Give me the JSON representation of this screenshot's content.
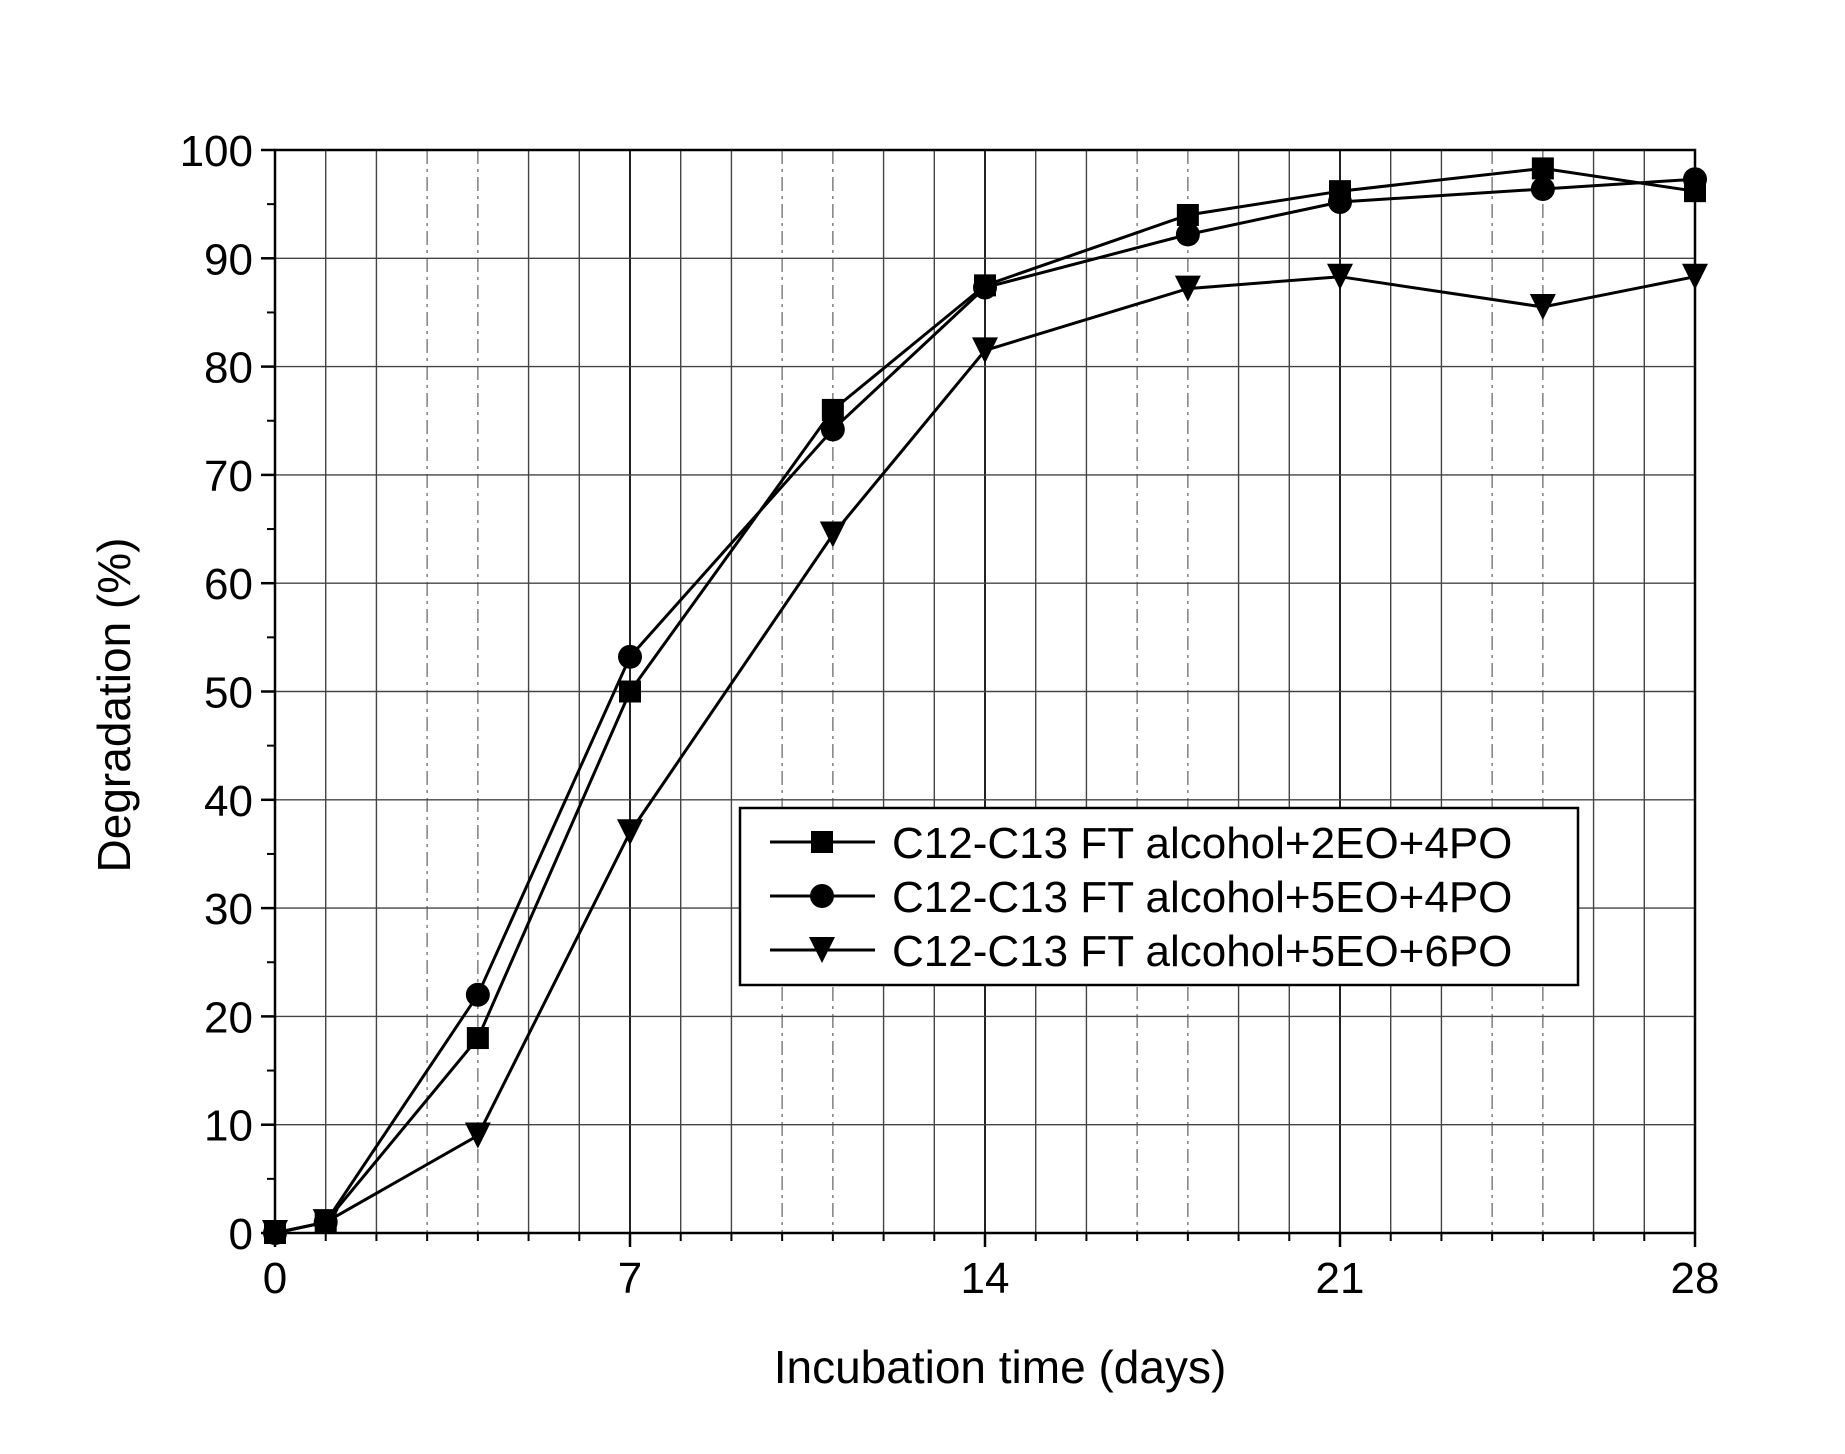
{
  "chart_data": {
    "type": "line",
    "xlabel": "Incubation time (days)",
    "ylabel": "Degradation (%)",
    "xlim": [
      0,
      28
    ],
    "ylim": [
      0,
      100
    ],
    "xticks": [
      0,
      7,
      14,
      21,
      28
    ],
    "yticks": [
      0,
      10,
      20,
      30,
      40,
      50,
      60,
      70,
      80,
      90,
      100
    ],
    "grid": true,
    "legend_position": "center-right",
    "series": [
      {
        "name": "C12-C13 FT alcohol+2EO+4PO",
        "marker": "square",
        "x": [
          0,
          1,
          4,
          7,
          11,
          14,
          18,
          21,
          25,
          28
        ],
        "y": [
          0,
          1,
          18,
          50,
          76,
          87.5,
          94,
          96.2,
          98.3,
          96.2
        ]
      },
      {
        "name": "C12-C13 FT alcohol+5EO+4PO",
        "marker": "circle",
        "x": [
          0,
          1,
          4,
          7,
          11,
          14,
          18,
          21,
          25,
          28
        ],
        "y": [
          0,
          1,
          22,
          53.2,
          74.2,
          87.3,
          92.2,
          95.2,
          96.4,
          97.3
        ]
      },
      {
        "name": "C12-C13 FT alcohol+5EO+6PO",
        "marker": "triangle-down",
        "x": [
          0,
          1,
          4,
          7,
          11,
          14,
          18,
          21,
          25,
          28
        ],
        "y": [
          0,
          1,
          9,
          37,
          64.5,
          81.5,
          87.2,
          88.3,
          85.5,
          88.3
        ]
      }
    ]
  }
}
